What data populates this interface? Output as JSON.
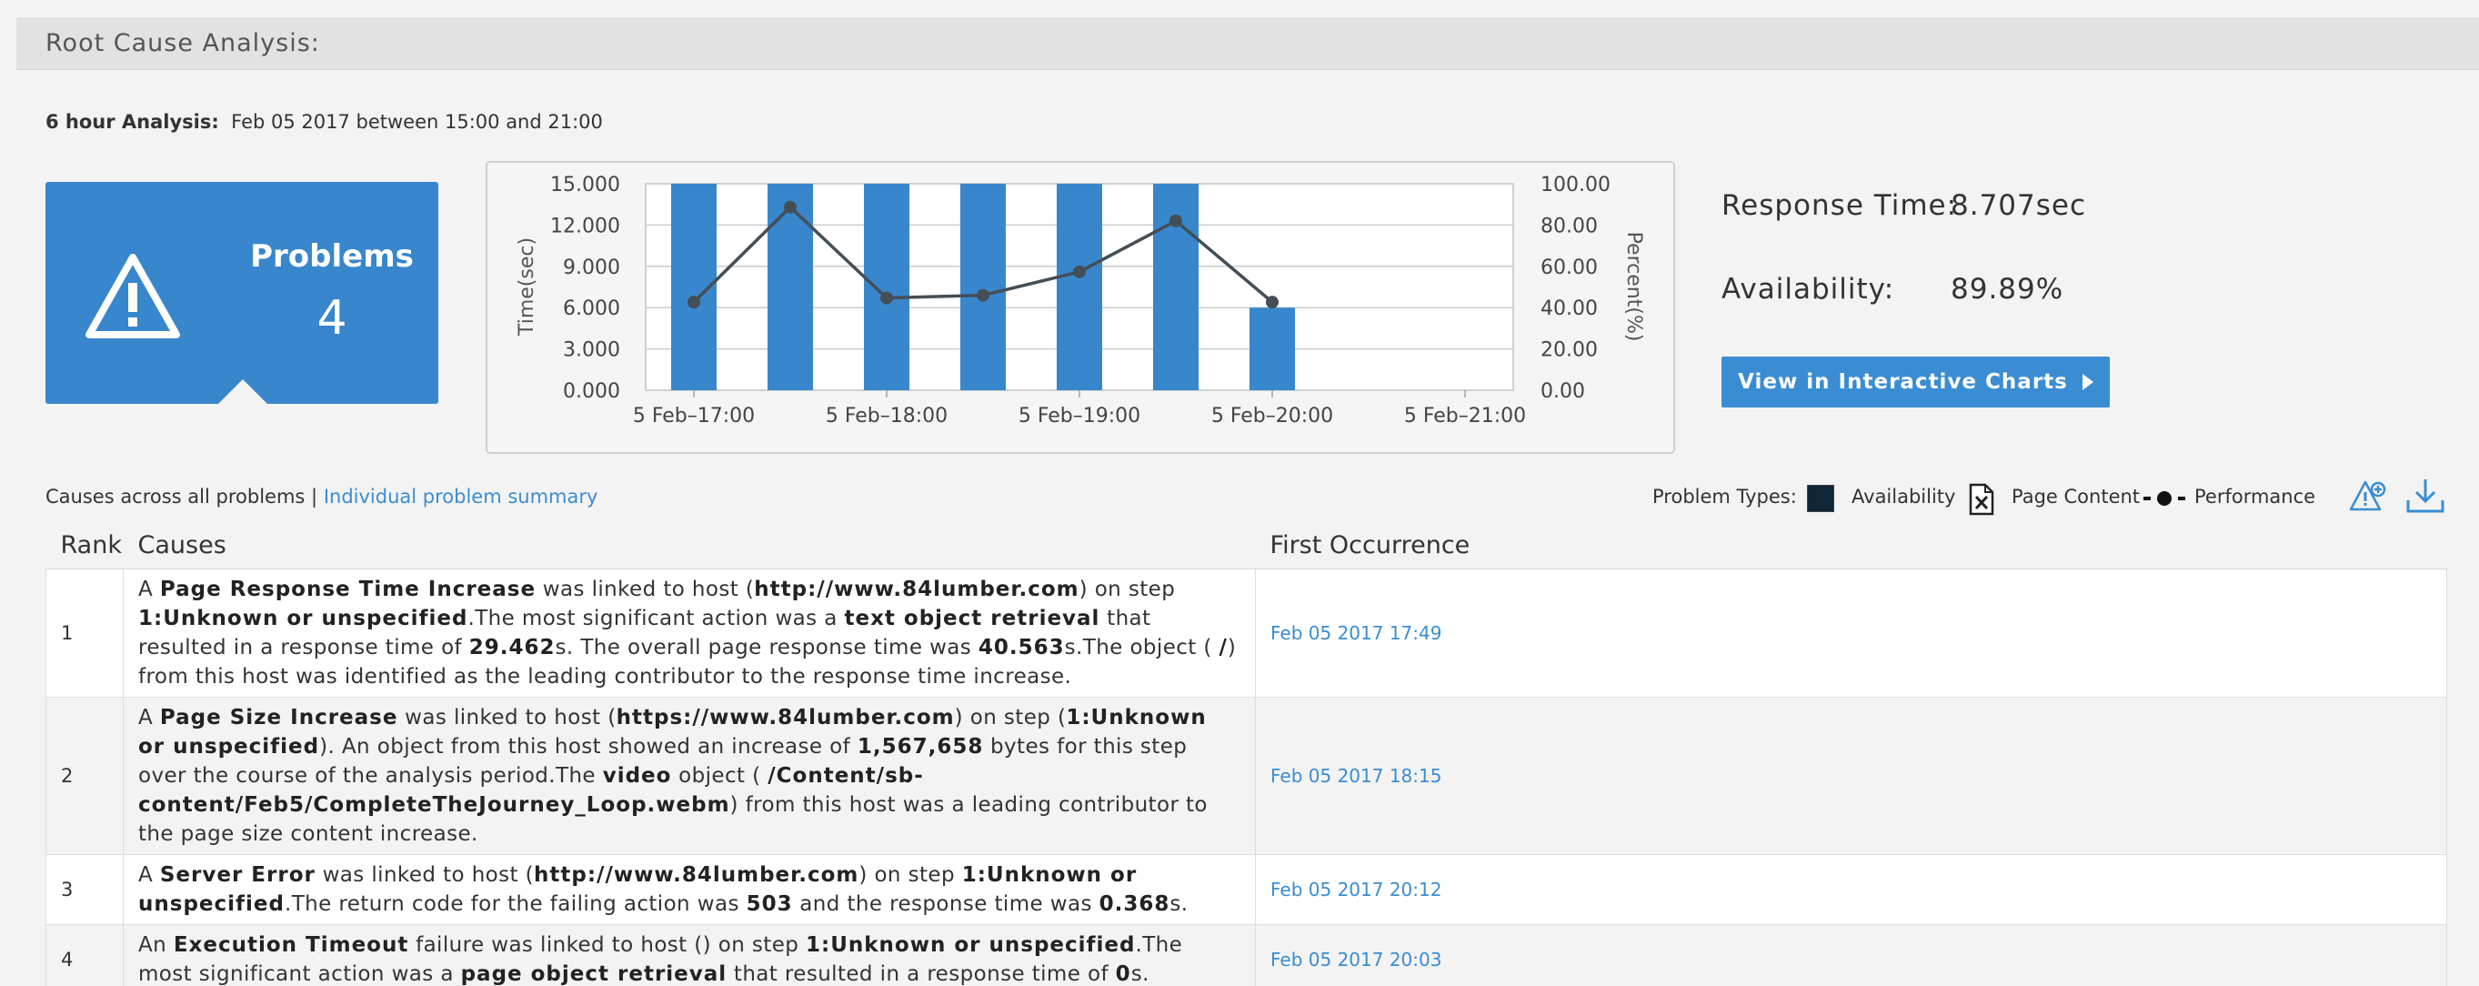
{
  "header": {
    "title": "Root Cause Analysis:"
  },
  "analysis": {
    "label": "6 hour Analysis:",
    "value": "Feb 05 2017  between 15:00 and 21:00"
  },
  "problems": {
    "label": "Problems",
    "count": "4",
    "icon": "warning-triangle-icon"
  },
  "metrics": {
    "response_time_label": "Response Time:",
    "response_time_value": "8.707sec",
    "availability_label": "Availability:",
    "availability_value": "89.89%"
  },
  "view_button": {
    "label": "View in Interactive Charts"
  },
  "causes_toggle": {
    "current": "Causes across all problems",
    "separator": "|",
    "link": "Individual problem summary"
  },
  "problem_types": {
    "label": "Problem Types:",
    "availability": "Availability",
    "page_content": "Page Content",
    "performance": "Performance",
    "availability_color": "#0f2538"
  },
  "table": {
    "headers": {
      "rank": "Rank",
      "causes": "Causes",
      "first": "First Occurrence"
    },
    "rows": [
      {
        "rank": "1",
        "first": "Feb 05 2017 17:49",
        "segments": [
          {
            "t": "A "
          },
          {
            "t": "Page Response Time Increase",
            "b": true
          },
          {
            "t": " was linked to host ("
          },
          {
            "t": "http://www.84lumber.com",
            "b": true
          },
          {
            "t": ") on step "
          },
          {
            "t": "1:Unknown or unspecified",
            "b": true
          },
          {
            "t": ".The most significant action was a "
          },
          {
            "t": "text object retrieval",
            "b": true
          },
          {
            "t": " that resulted in a response time of "
          },
          {
            "t": "29.462",
            "b": true
          },
          {
            "t": "s. The overall page response time was "
          },
          {
            "t": "40.563",
            "b": true
          },
          {
            "t": "s.The object ( "
          },
          {
            "t": "/",
            "b": true
          },
          {
            "t": ") from this host was identified as the leading contributor to the response time increase."
          }
        ]
      },
      {
        "rank": "2",
        "first": "Feb 05 2017 18:15",
        "segments": [
          {
            "t": "A "
          },
          {
            "t": "Page Size Increase",
            "b": true
          },
          {
            "t": " was linked to host ("
          },
          {
            "t": "https://www.84lumber.com",
            "b": true
          },
          {
            "t": ") on step ("
          },
          {
            "t": "1:Unknown or unspecified",
            "b": true
          },
          {
            "t": "). An object from this host showed an increase of "
          },
          {
            "t": "1,567,658",
            "b": true
          },
          {
            "t": " bytes for this step over the course of the analysis period.The "
          },
          {
            "t": "video",
            "b": true
          },
          {
            "t": " object ( "
          },
          {
            "t": "/Content/sb-content/Feb5/CompleteTheJourney_Loop.webm",
            "b": true
          },
          {
            "t": ") from this host was a leading contributor to the page size content increase."
          }
        ]
      },
      {
        "rank": "3",
        "first": "Feb 05 2017 20:12",
        "segments": [
          {
            "t": "A "
          },
          {
            "t": "Server Error",
            "b": true
          },
          {
            "t": " was linked to host ("
          },
          {
            "t": "http://www.84lumber.com",
            "b": true
          },
          {
            "t": ") on step "
          },
          {
            "t": "1:Unknown or unspecified",
            "b": true
          },
          {
            "t": ".The return code for the failing action was "
          },
          {
            "t": "503",
            "b": true
          },
          {
            "t": " and the response time was "
          },
          {
            "t": "0.368",
            "b": true
          },
          {
            "t": "s."
          }
        ]
      },
      {
        "rank": "4",
        "first": "Feb 05 2017 20:03",
        "segments": [
          {
            "t": "An "
          },
          {
            "t": "Execution Timeout",
            "b": true
          },
          {
            "t": " failure was linked to host () on step "
          },
          {
            "t": "1:Unknown or unspecified",
            "b": true
          },
          {
            "t": ".The most significant action was a "
          },
          {
            "t": "page object retrieval",
            "b": true
          },
          {
            "t": " that resulted in a response time of "
          },
          {
            "t": "0",
            "b": true
          },
          {
            "t": "s."
          }
        ]
      }
    ]
  },
  "chart_data": {
    "type": "bar",
    "ylabel": "Time(sec)",
    "y2label": "Percent(%)",
    "ylim": [
      0,
      15
    ],
    "y2lim": [
      0,
      100
    ],
    "yticks": [
      "0.000",
      "3.000",
      "6.000",
      "9.000",
      "12.000",
      "15.000"
    ],
    "y2ticks": [
      "0.00",
      "20.00",
      "40.00",
      "60.00",
      "80.00",
      "100.00"
    ],
    "xticks": [
      "5 Feb–17:00",
      "5 Feb–18:00",
      "5 Feb–19:00",
      "5 Feb–20:00",
      "5 Feb–21:00"
    ],
    "x_hours": [
      17,
      17.5,
      18,
      18.5,
      19,
      19.5,
      20
    ],
    "bars_time_sec": [
      15,
      15,
      15,
      15,
      15,
      15,
      6
    ],
    "line_time_sec": [
      6.4,
      13.3,
      6.7,
      6.9,
      8.6,
      12.3,
      6.4
    ],
    "bar_color": "#3887cd",
    "line_color": "#444e57",
    "grid": true
  }
}
